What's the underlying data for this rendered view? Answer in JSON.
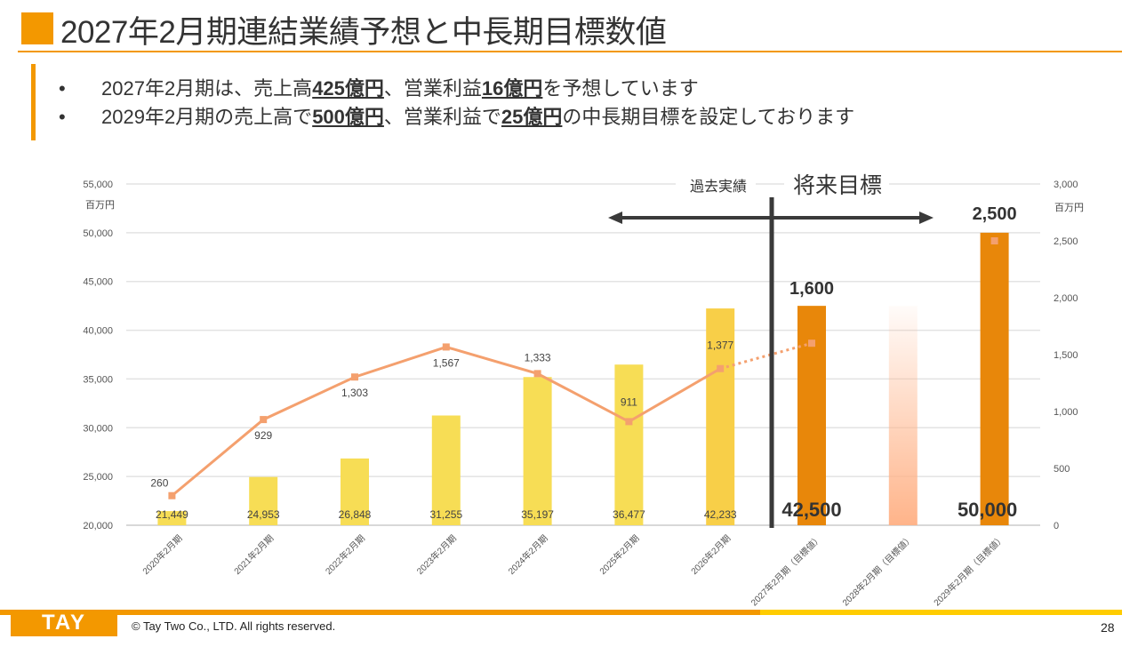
{
  "header": {
    "title": "2027年2月期連結業績予想と中長期目標数値"
  },
  "bullets": [
    {
      "pre": "2027年2月期は、売上高",
      "b1": "425億円",
      "mid": "、営業利益",
      "b2": "16億円",
      "post": "を予想しています"
    },
    {
      "pre": "2029年2月期の売上高で",
      "b1": "500億円",
      "mid": "、営業利益で",
      "b2": "25億円",
      "post": "の中長期目標を設定しております"
    }
  ],
  "chart_data": {
    "type": "bar+line",
    "categories": [
      "2020年2月期",
      "2021年2月期",
      "2022年2月期",
      "2023年2月期",
      "2024年2月期",
      "2025年2月期",
      "2026年2月期",
      "2027年2月期（目標値）",
      "2028年2月期（目標値）",
      "2029年2月期（目標値）"
    ],
    "bar_values": [
      21449,
      24953,
      26848,
      31255,
      35197,
      36477,
      42233,
      42500,
      42500,
      50000
    ],
    "bar_labels": [
      "21,449",
      "24,953",
      "26,848",
      "31,255",
      "35,197",
      "36,477",
      "42,233",
      "42,500",
      "",
      "50,000"
    ],
    "line_values": [
      260,
      929,
      1303,
      1567,
      1333,
      911,
      1377,
      1600,
      null,
      2500
    ],
    "line_labels": [
      "260",
      "929",
      "1,303",
      "1,567",
      "1,333",
      "911",
      "1,377",
      "1,600",
      "",
      "2,500"
    ],
    "left_axis": {
      "unit": "百万円",
      "ylim": [
        20000,
        55000
      ],
      "ticks": [
        "20,000",
        "25,000",
        "30,000",
        "35,000",
        "40,000",
        "45,000",
        "50,000",
        "55,000"
      ]
    },
    "right_axis": {
      "unit": "百万円",
      "ylim": [
        0,
        3000
      ],
      "ticks": [
        "0",
        "500",
        "1,000",
        "1,500",
        "2,000",
        "2,500",
        "3,000"
      ]
    },
    "grid": true,
    "annotations": {
      "past": "過去実績",
      "future": "将来目標"
    },
    "colors": {
      "past_bar": "#F7DD55",
      "bar_2026": "#F8CF48",
      "target_bar": "#E8870A",
      "faded_bar": "#FFB48A",
      "line": "#F4A06E"
    }
  },
  "footer": {
    "logo": "TAY TWO",
    "copyright": "© Tay Two Co., LTD. All rights reserved.",
    "page": "28"
  }
}
